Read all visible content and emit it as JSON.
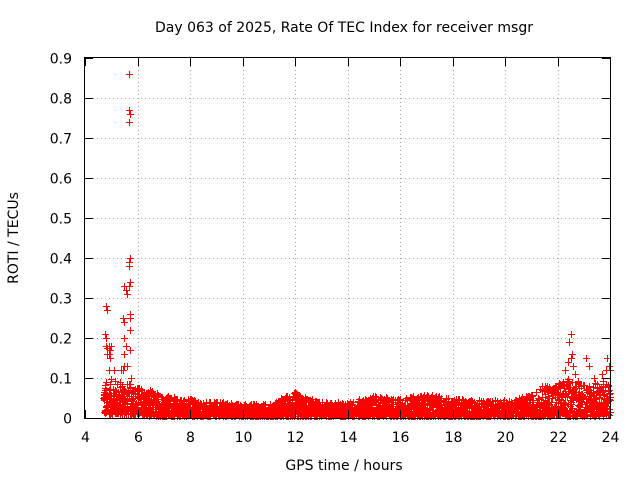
{
  "chart_data": {
    "type": "scatter",
    "title": "Day 063 of 2025, Rate Of TEC Index for receiver msgr",
    "xlabel": "GPS time / hours",
    "ylabel": "ROTI / TECUs",
    "xlim": [
      4,
      24
    ],
    "ylim": [
      0,
      0.9
    ],
    "xticks": [
      4,
      6,
      8,
      10,
      12,
      14,
      16,
      18,
      20,
      22,
      24
    ],
    "yticks": [
      0,
      0.1,
      0.2,
      0.3,
      0.4,
      0.5,
      0.6,
      0.7,
      0.8,
      0.9
    ],
    "xtick_labels": [
      "4",
      "6",
      "8",
      "10",
      "12",
      "14",
      "16",
      "18",
      "20",
      "22",
      "24"
    ],
    "ytick_labels": [
      "0",
      "0.1",
      "0.2",
      "0.3",
      "0.4",
      "0.5",
      "0.6",
      "0.7",
      "0.8",
      "0.9"
    ],
    "grid": true,
    "marker": "plus",
    "color": "#ff0000",
    "series": [
      {
        "name": "ROTI",
        "outliers": [
          [
            5.67,
            0.86
          ],
          [
            5.67,
            0.77
          ],
          [
            5.7,
            0.76
          ],
          [
            5.67,
            0.74
          ],
          [
            5.7,
            0.4
          ],
          [
            5.68,
            0.39
          ],
          [
            5.67,
            0.38
          ],
          [
            5.7,
            0.34
          ],
          [
            5.68,
            0.33
          ],
          [
            5.5,
            0.33
          ],
          [
            5.55,
            0.32
          ],
          [
            5.6,
            0.31
          ],
          [
            4.8,
            0.28
          ],
          [
            4.85,
            0.27
          ],
          [
            5.45,
            0.25
          ],
          [
            5.5,
            0.24
          ],
          [
            5.7,
            0.26
          ],
          [
            5.73,
            0.25
          ],
          [
            5.72,
            0.22
          ],
          [
            4.75,
            0.21
          ],
          [
            4.8,
            0.2
          ],
          [
            5.5,
            0.2
          ],
          [
            5.55,
            0.18
          ],
          [
            5.7,
            0.17
          ],
          [
            5.48,
            0.16
          ],
          [
            5.6,
            0.13
          ],
          [
            4.8,
            0.18
          ],
          [
            4.85,
            0.175
          ],
          [
            4.9,
            0.18
          ],
          [
            4.95,
            0.17
          ],
          [
            5.0,
            0.18
          ],
          [
            4.82,
            0.16
          ],
          [
            4.9,
            0.16
          ],
          [
            4.95,
            0.15
          ],
          [
            5.45,
            0.12
          ],
          [
            5.5,
            0.13
          ],
          [
            5.38,
            0.12
          ],
          [
            4.9,
            0.12
          ],
          [
            5.1,
            0.12
          ],
          [
            5.75,
            0.1
          ],
          [
            22.5,
            0.21
          ],
          [
            22.45,
            0.19
          ],
          [
            22.55,
            0.16
          ],
          [
            22.5,
            0.15
          ],
          [
            22.4,
            0.14
          ],
          [
            22.6,
            0.13
          ],
          [
            22.3,
            0.12
          ],
          [
            22.65,
            0.11
          ],
          [
            23.1,
            0.15
          ],
          [
            23.2,
            0.13
          ],
          [
            23.9,
            0.15
          ],
          [
            23.95,
            0.13
          ],
          [
            23.85,
            0.12
          ],
          [
            23.7,
            0.11
          ],
          [
            24.0,
            0.12
          ],
          [
            21.4,
            0.08
          ],
          [
            21.5,
            0.07
          ],
          [
            21.6,
            0.08
          ],
          [
            22.8,
            0.08
          ],
          [
            23.4,
            0.1
          ]
        ],
        "envelope": {
          "x": [
            4.7,
            5.0,
            5.5,
            6.0,
            6.5,
            7.0,
            7.5,
            8.0,
            8.5,
            9.0,
            9.5,
            10.0,
            11.0,
            11.8,
            12.0,
            12.5,
            13.0,
            14.0,
            15.0,
            16.0,
            17.0,
            18.0,
            19.0,
            20.0,
            20.5,
            21.0,
            21.5,
            22.0,
            22.5,
            23.0,
            23.5,
            24.0
          ],
          "top": [
            0.09,
            0.1,
            0.09,
            0.08,
            0.07,
            0.06,
            0.05,
            0.05,
            0.04,
            0.04,
            0.04,
            0.035,
            0.035,
            0.06,
            0.065,
            0.05,
            0.04,
            0.04,
            0.055,
            0.05,
            0.06,
            0.05,
            0.045,
            0.045,
            0.05,
            0.06,
            0.08,
            0.09,
            0.1,
            0.09,
            0.09,
            0.1
          ],
          "bottom": [
            0.01,
            0.01,
            0.01,
            0.01,
            0.005,
            0.005,
            0.005,
            0.005,
            0.005,
            0.005,
            0.005,
            0.005,
            0.005,
            0.005,
            0.005,
            0.005,
            0.005,
            0.005,
            0.005,
            0.005,
            0.005,
            0.005,
            0.005,
            0.005,
            0.005,
            0.005,
            0.005,
            0.005,
            0.005,
            0.005,
            0.005,
            0.005
          ]
        }
      }
    ]
  }
}
